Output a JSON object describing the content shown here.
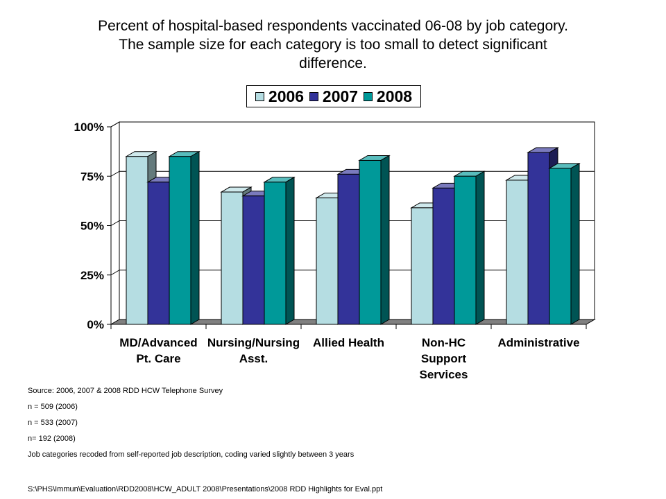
{
  "title": [
    "Percent of hospital-based respondents vaccinated 06-08 by job category.",
    "The sample size for each category is too small to detect significant",
    "difference."
  ],
  "colors": {
    "2006": "#b5dde2",
    "2007": "#333399",
    "2008": "#009999"
  },
  "chart_data": {
    "type": "bar",
    "categories": [
      [
        "MD/Advanced",
        "Pt. Care"
      ],
      [
        "Nursing/Nursing",
        "Asst."
      ],
      [
        "Allied Health"
      ],
      [
        "Non-HC",
        "Support",
        "Services"
      ],
      [
        "Administrative"
      ]
    ],
    "series": [
      {
        "name": "2006",
        "values": [
          85,
          67,
          64,
          59,
          73
        ]
      },
      {
        "name": "2007",
        "values": [
          72,
          65,
          76,
          69,
          87
        ]
      },
      {
        "name": "2008",
        "values": [
          85,
          72,
          83,
          75,
          79
        ]
      }
    ],
    "yticks": [
      "0%",
      "25%",
      "50%",
      "75%",
      "100%"
    ],
    "ylim": [
      0,
      100
    ],
    "grid": true,
    "legend_position": "top"
  },
  "footer": {
    "notes": [
      "Source: 2006, 2007 & 2008 RDD HCW Telephone Survey",
      "n = 509 (2006)",
      "n = 533 (2007)",
      "n= 192 (2008)",
      "Job categories recoded from self-reported job description, coding varied slightly between 3 years"
    ],
    "path": "S:\\PHS\\Immun\\Evaluation\\RDD2008\\HCW_ADULT  2008\\Presentations\\2008 RDD Highlights for Eval.ppt"
  }
}
